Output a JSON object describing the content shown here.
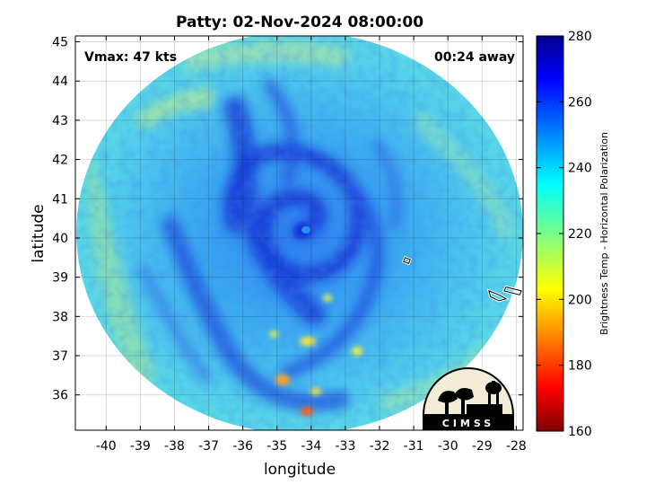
{
  "title": "Patty: 02-Nov-2024 08:00:00",
  "annotations": {
    "vmax": "Vmax: 47 kts",
    "time_away": "00:24 away"
  },
  "logo": {
    "text": "CIMSS"
  },
  "colors": {
    "cold": "#00008f",
    "warm": "#800000",
    "disk_base": "#4fc1f0"
  },
  "chart_data": {
    "type": "heatmap",
    "title": "Patty: 02-Nov-2024 08:00:00",
    "xlabel": "longitude",
    "ylabel": "latitude",
    "xlim": [
      -40.9,
      -27.8
    ],
    "ylim": [
      35.1,
      45.15
    ],
    "x_ticks": [
      -40,
      -39,
      -38,
      -37,
      -36,
      -35,
      -34,
      -33,
      -32,
      -31,
      -30,
      -29,
      -28
    ],
    "y_ticks": [
      36,
      37,
      38,
      39,
      40,
      41,
      42,
      43,
      44,
      45
    ],
    "grid": true,
    "colorbar": {
      "label": "Brightness Temp - Horizontal Polarization",
      "range": [
        160,
        280
      ],
      "ticks": [
        160,
        180,
        200,
        220,
        240,
        260,
        280
      ],
      "colormap": "jet"
    },
    "storm_center": {
      "lon": -34.2,
      "lat": 40.2
    },
    "coastlines": [
      {
        "name": "flores-corvo",
        "points": [
          [
            -31.25,
            39.5
          ],
          [
            -31.1,
            39.45
          ],
          [
            -31.15,
            39.35
          ],
          [
            -31.3,
            39.4
          ]
        ]
      },
      {
        "name": "faial-pico",
        "points": [
          [
            -28.8,
            38.65
          ],
          [
            -28.5,
            38.55
          ],
          [
            -28.3,
            38.45
          ],
          [
            -28.5,
            38.4
          ],
          [
            -28.75,
            38.5
          ]
        ]
      },
      {
        "name": "sao-jorge",
        "points": [
          [
            -28.3,
            38.75
          ],
          [
            -27.85,
            38.65
          ],
          [
            -27.9,
            38.55
          ],
          [
            -28.35,
            38.65
          ]
        ]
      }
    ]
  }
}
